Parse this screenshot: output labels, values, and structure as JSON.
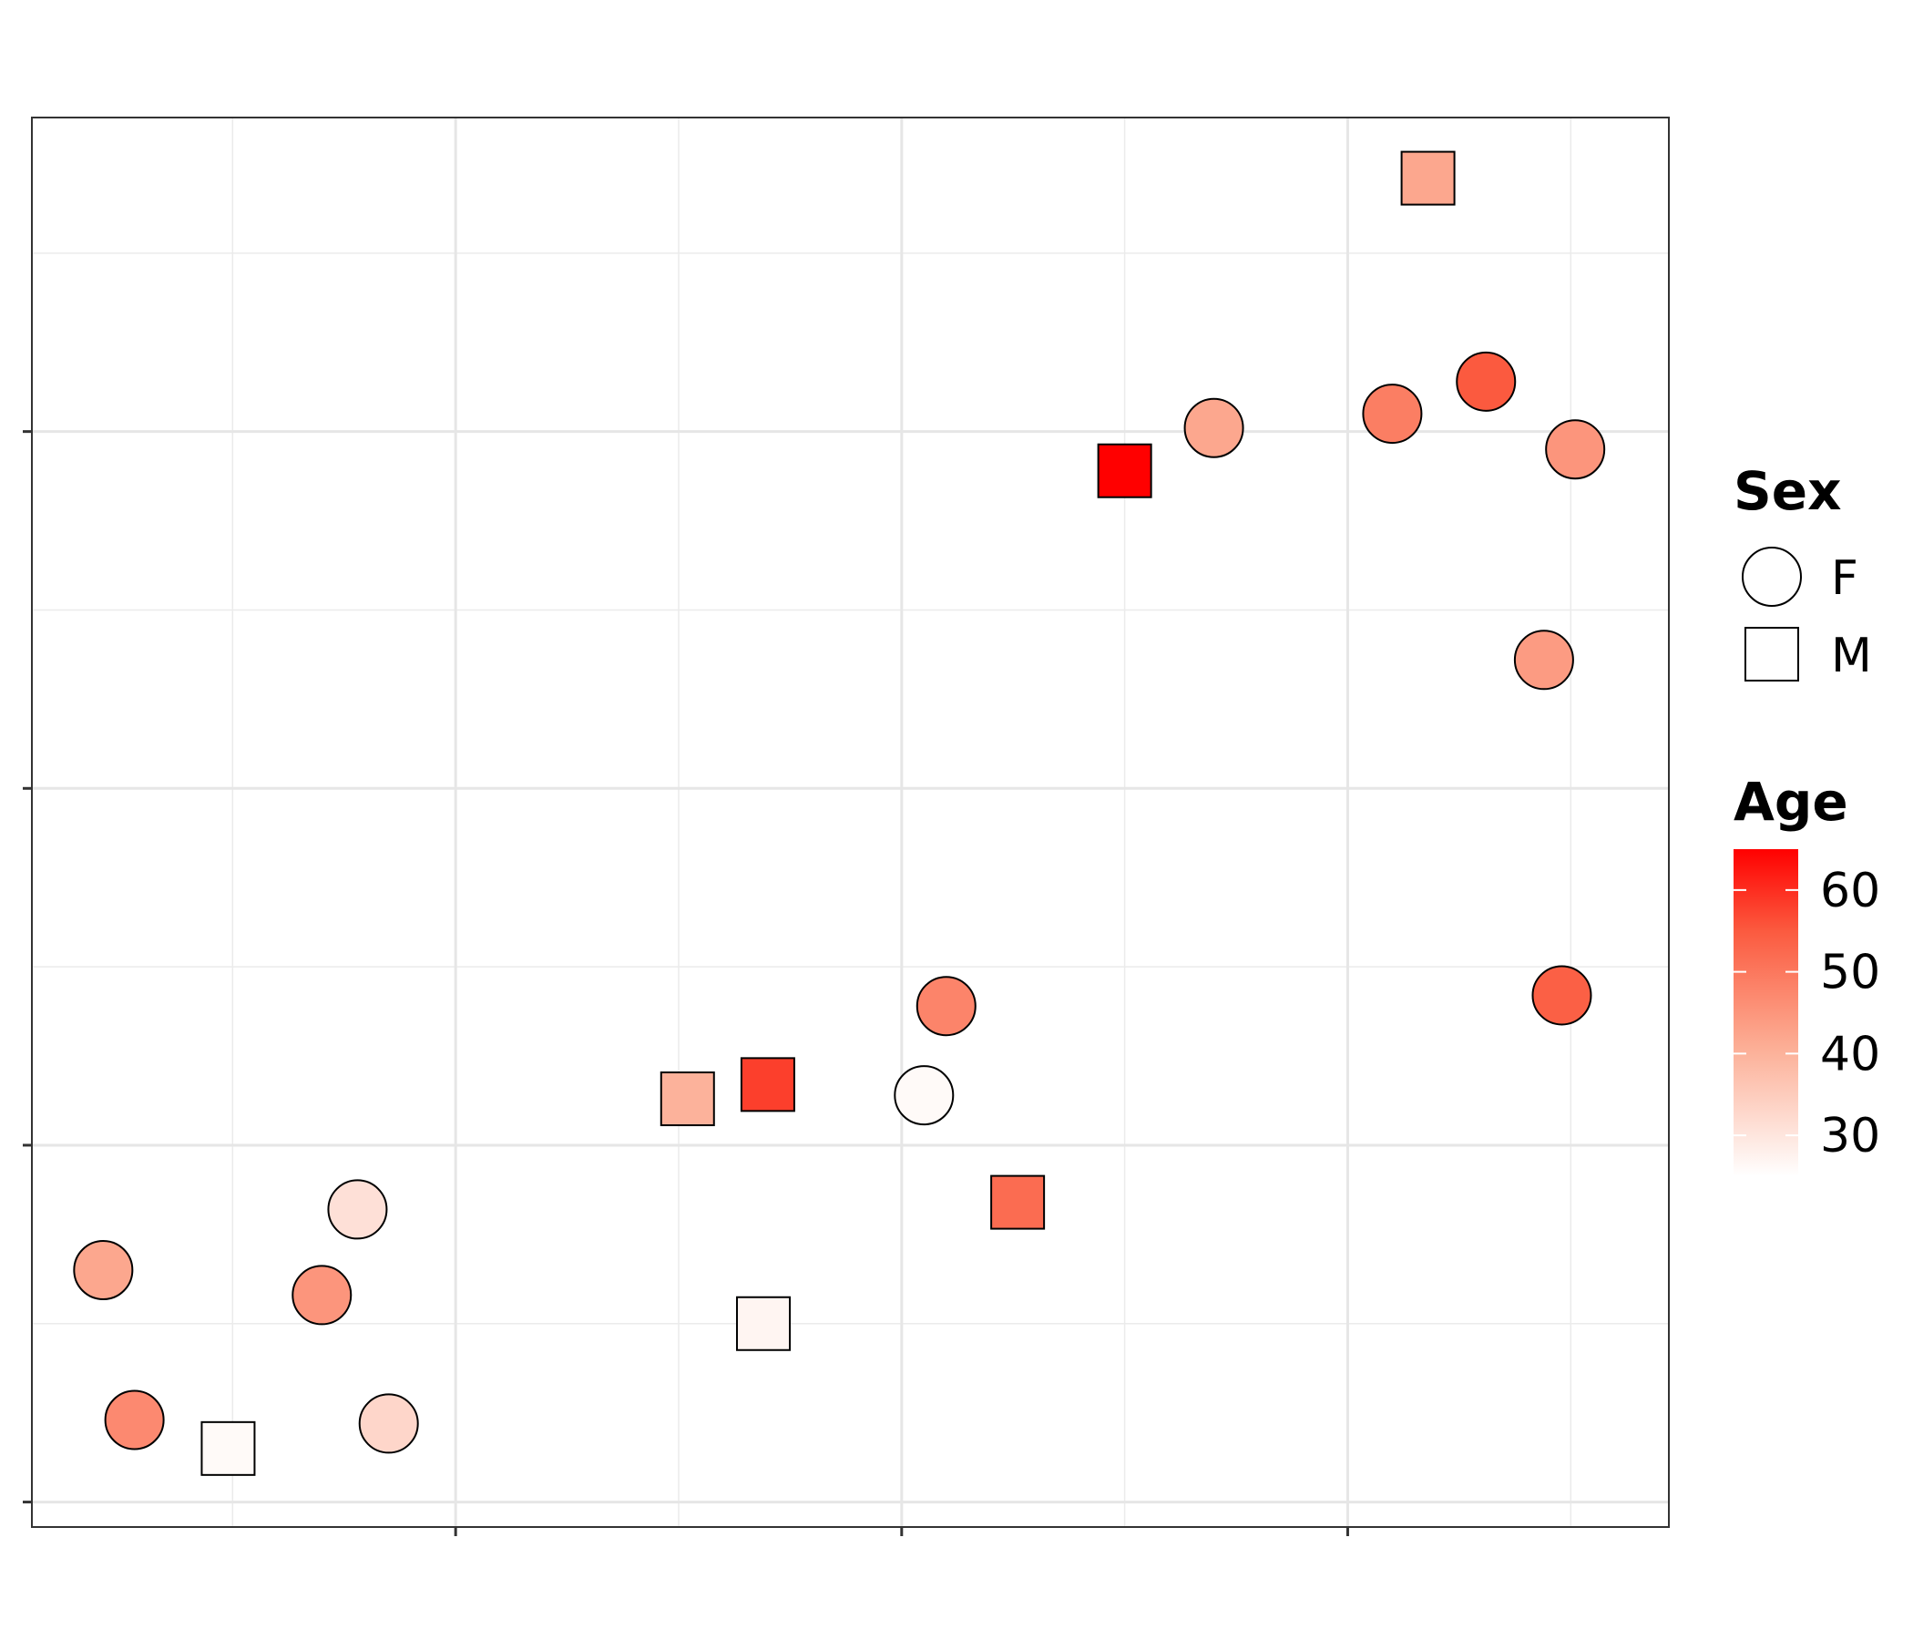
{
  "chart_data": {
    "type": "scatter",
    "xlim": [
      -0.95,
      2.72
    ],
    "ylim": [
      -1.07,
      2.88
    ],
    "x_gridlines_major": [
      0,
      1,
      2
    ],
    "x_gridlines_minor": [
      -0.5,
      0.5,
      1.5,
      2.5
    ],
    "y_gridlines_major": [
      -1,
      0,
      1,
      2
    ],
    "y_gridlines_minor": [
      -0.5,
      0.5,
      1.5,
      2.5
    ],
    "grid": true,
    "tick_labels_shown": false,
    "points": [
      {
        "x": -0.79,
        "y": -0.35,
        "sex": "F",
        "age": 42
      },
      {
        "x": -0.72,
        "y": -0.77,
        "sex": "F",
        "age": 47
      },
      {
        "x": -0.51,
        "y": -0.85,
        "sex": "M",
        "age": 26
      },
      {
        "x": -0.3,
        "y": -0.42,
        "sex": "F",
        "age": 45
      },
      {
        "x": -0.22,
        "y": -0.18,
        "sex": "F",
        "age": 31
      },
      {
        "x": -0.15,
        "y": -0.78,
        "sex": "F",
        "age": 33
      },
      {
        "x": 0.52,
        "y": 0.13,
        "sex": "M",
        "age": 40
      },
      {
        "x": 0.7,
        "y": 0.17,
        "sex": "M",
        "age": 58
      },
      {
        "x": 0.69,
        "y": -0.5,
        "sex": "M",
        "age": 27
      },
      {
        "x": 1.05,
        "y": 0.14,
        "sex": "F",
        "age": 26
      },
      {
        "x": 1.1,
        "y": 0.39,
        "sex": "F",
        "age": 48
      },
      {
        "x": 1.26,
        "y": -0.16,
        "sex": "M",
        "age": 52
      },
      {
        "x": 1.5,
        "y": 1.89,
        "sex": "M",
        "age": 65
      },
      {
        "x": 1.7,
        "y": 2.01,
        "sex": "F",
        "age": 42
      },
      {
        "x": 2.1,
        "y": 2.05,
        "sex": "F",
        "age": 49
      },
      {
        "x": 2.18,
        "y": 2.71,
        "sex": "M",
        "age": 42
      },
      {
        "x": 2.31,
        "y": 2.14,
        "sex": "F",
        "age": 55
      },
      {
        "x": 2.44,
        "y": 1.36,
        "sex": "F",
        "age": 44
      },
      {
        "x": 2.48,
        "y": 0.42,
        "sex": "F",
        "age": 54
      },
      {
        "x": 2.51,
        "y": 1.95,
        "sex": "F",
        "age": 45
      }
    ],
    "legend": {
      "placement": "right",
      "shape": {
        "title": "Sex",
        "items": [
          {
            "label": "F",
            "shape": "circle"
          },
          {
            "label": "M",
            "shape": "square"
          }
        ]
      },
      "color": {
        "title": "Age",
        "min": 25,
        "max": 65,
        "ticks": [
          30,
          40,
          50,
          60
        ],
        "low_color": "#ffffff",
        "high_color": "#ff0000"
      }
    }
  }
}
